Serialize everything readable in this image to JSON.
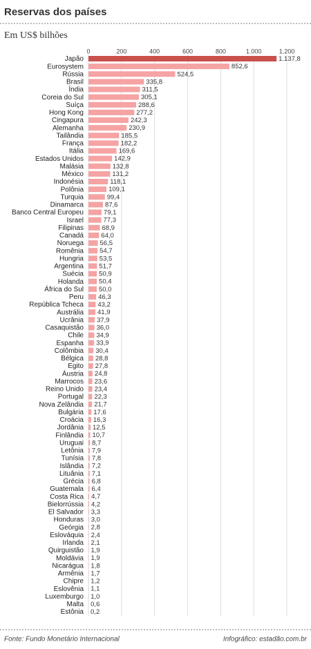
{
  "chart_data": {
    "type": "hbar",
    "title": "Reservas dos países",
    "subtitle": "Em US$ bilhões",
    "source": "Fonte: Fundo Monetário Internacional",
    "credit": "Infográfico: estadão.com.br",
    "categories": [
      "Japão",
      "Eurosystem",
      "Rússia",
      "Brasil",
      "Índia",
      "Coreia do Sul",
      "Suíça",
      "Hong Kong",
      "Cingapura",
      "Alemanha",
      "Tailândia",
      "França",
      "Itália",
      "Estados Unidos",
      "Malásia",
      "México",
      "Indonésia",
      "Polônia",
      "Turquia",
      "Dinamarca",
      "Banco Central Europeu",
      "Israel",
      "Filipinas",
      "Canadá",
      "Noruega",
      "Romênia",
      "Hungria",
      "Argentina",
      "Suécia",
      "Holanda",
      "África do Sul",
      "Peru",
      "República Tcheca",
      "Austrália",
      "Ucrânia",
      "Casaquistão",
      "Chile",
      "Espanha",
      "Colômbia",
      "Bélgica",
      "Egito",
      "Áustria",
      "Marrocos",
      "Reino Unido",
      "Portugal",
      "Nova Zelândia",
      "Bulgária",
      "Croácia",
      "Jordânia",
      "Finlândia",
      "Uruguai",
      "Letônia",
      "Tunísia",
      "Islândia",
      "Lituânia",
      "Grécia",
      "Guatemala",
      "Costa Rica",
      "Bielorrússia",
      "El Salvador",
      "Honduras",
      "Geórgia",
      "Eslováquia",
      "Irlanda",
      "Quirguistão",
      "Moldávia",
      "Nicarágua",
      "Armênia",
      "Chipre",
      "Eslovênia",
      "Luxemburgo",
      "Malta",
      "Estônia"
    ],
    "values": [
      1137.8,
      852.6,
      524.5,
      335.8,
      311.5,
      305.1,
      288.6,
      277.2,
      242.3,
      230.9,
      185.5,
      182.2,
      169.6,
      142.9,
      132.8,
      131.2,
      118.1,
      109.1,
      99.4,
      87.6,
      79.1,
      77.3,
      68.9,
      64.0,
      56.5,
      54.7,
      53.5,
      51.7,
      50.9,
      50.4,
      50.0,
      46.3,
      43.2,
      41.9,
      37.9,
      36.0,
      34.9,
      33.9,
      30.4,
      28.8,
      27.8,
      24.8,
      23.6,
      23.4,
      22.3,
      21.7,
      17.6,
      16.3,
      12.5,
      10.7,
      8.7,
      7.9,
      7.8,
      7.2,
      7.1,
      6.8,
      6.4,
      4.7,
      4.2,
      3.3,
      3.0,
      2.8,
      2.4,
      2.1,
      1.9,
      1.9,
      1.8,
      1.7,
      1.2,
      1.1,
      1.0,
      0.6,
      0.2
    ],
    "value_labels": [
      "1.137,8",
      "852,6",
      "524,5",
      "335,8",
      "311,5",
      "305,1",
      "288,6",
      "277,2",
      "242,3",
      "230,9",
      "185,5",
      "182,2",
      "169,6",
      "142,9",
      "132,8",
      "131,2",
      "118,1",
      "109,1",
      "99,4",
      "87,6",
      "79,1",
      "77,3",
      "68,9",
      "64,0",
      "56,5",
      "54,7",
      "53,5",
      "51,7",
      "50,9",
      "50,4",
      "50,0",
      "46,3",
      "43,2",
      "41,9",
      "37,9",
      "36,0",
      "34,9",
      "33,9",
      "30,4",
      "28,8",
      "27,8",
      "24,8",
      "23,6",
      "23,4",
      "22,3",
      "21,7",
      "17,6",
      "16,3",
      "12,5",
      "10,7",
      "8,7",
      "7,9",
      "7,8",
      "7,2",
      "7,1",
      "6,8",
      "6,4",
      "4,7",
      "4,2",
      "3,3",
      "3,0",
      "2,8",
      "2,4",
      "2,1",
      "1,9",
      "1,9",
      "1,8",
      "1,7",
      "1,2",
      "1,1",
      "1,0",
      "0,6",
      "0,2"
    ],
    "colors": [
      "#c9504b",
      "#f5a3a3",
      "#f5a3a3",
      "#f5a3a3",
      "#f5a3a3",
      "#f5a3a3",
      "#f5a3a3",
      "#f5a3a3",
      "#f5a3a3",
      "#f5a3a3",
      "#f5a3a3",
      "#f5a3a3",
      "#f5a3a3",
      "#f5a3a3",
      "#f5a3a3",
      "#f5a3a3",
      "#f5a3a3",
      "#f5a3a3",
      "#f5a3a3",
      "#f5a3a3",
      "#f5a3a3",
      "#f5a3a3",
      "#f5a3a3",
      "#f5a3a3",
      "#f5a3a3",
      "#f5a3a3",
      "#f5a3a3",
      "#f5a3a3",
      "#f5a3a3",
      "#f5a3a3",
      "#f5a3a3",
      "#f5a3a3",
      "#f5a3a3",
      "#f5a3a3",
      "#f5a3a3",
      "#f5a3a3",
      "#f5a3a3",
      "#f5a3a3",
      "#f5a3a3",
      "#f5a3a3",
      "#f5a3a3",
      "#f5a3a3",
      "#f5a3a3",
      "#f5a3a3",
      "#f5a3a3",
      "#f5a3a3",
      "#f5a3a3",
      "#f5a3a3",
      "#f5a3a3",
      "#f5a3a3",
      "#f5a3a3",
      "#f5a3a3",
      "#f5a3a3",
      "#f5a3a3",
      "#f5a3a3",
      "#f5a3a3",
      "#f5a3a3",
      "#f5a3a3",
      "#f5a3a3",
      "#f5a3a3",
      "#f5a3a3",
      "#f5a3a3",
      "#f5a3a3",
      "#f5a3a3",
      "#f5a3a3",
      "#f5a3a3",
      "#f5a3a3",
      "#f5a3a3",
      "#f5a3a3",
      "#f5a3a3",
      "#f5a3a3",
      "#f5a3a3",
      "#f5a3a3"
    ],
    "xlim": [
      0,
      1200
    ],
    "xticks": [
      0,
      200,
      400,
      600,
      800,
      {
        "value": 1000,
        "label": "1.000"
      },
      {
        "value": 1200,
        "label": "1.200"
      }
    ],
    "grid": true
  }
}
